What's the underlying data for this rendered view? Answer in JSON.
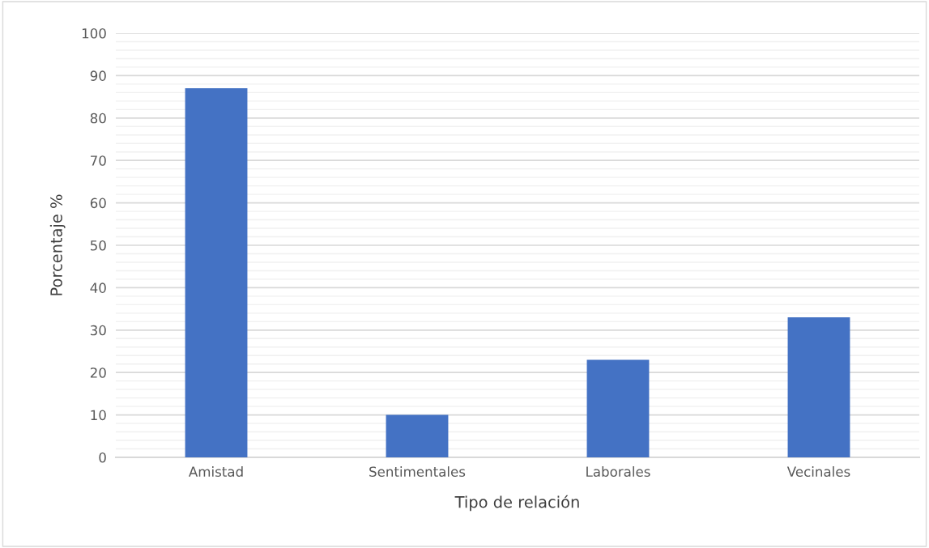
{
  "chart_data": {
    "type": "bar",
    "xlabel": "Tipo de relación",
    "ylabel": "Porcentaje %",
    "categories": [
      "Amistad",
      "Sentimentales",
      "Laborales",
      "Vecinales"
    ],
    "values": [
      87,
      10,
      23,
      33
    ],
    "color": "#4472c4",
    "ylim": [
      0,
      100
    ],
    "yticks": [
      0,
      10,
      20,
      30,
      40,
      50,
      60,
      70,
      80,
      90,
      100
    ],
    "grid": "y",
    "legend": false
  }
}
